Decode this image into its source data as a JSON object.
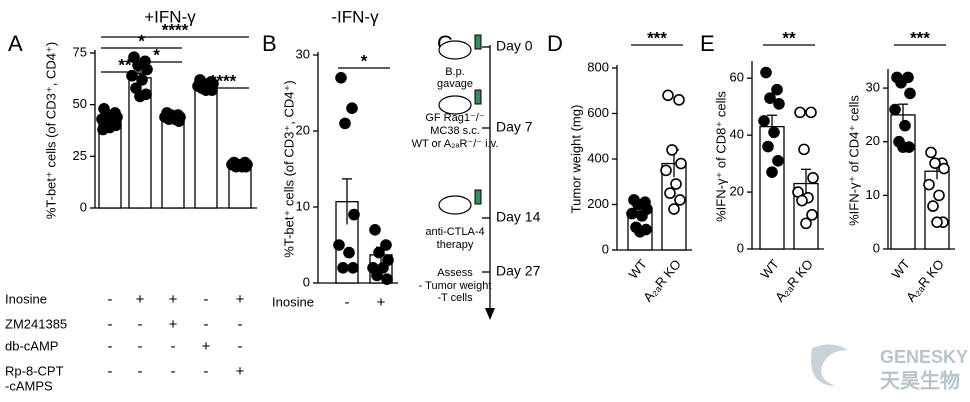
{
  "chart_data": [
    {
      "type": "bar",
      "panel_label": "A",
      "title": "+IFN-γ",
      "ylabel": "%T-bet⁺ cells (of CD3⁺, CD4⁺)",
      "values": [
        43,
        63,
        44,
        59,
        21
      ],
      "errors": [
        1.5,
        2,
        1,
        1,
        0.5
      ],
      "points": [
        [
          48,
          46,
          45,
          44,
          43,
          42,
          41,
          40,
          39,
          38
        ],
        [
          73,
          71,
          69,
          67,
          64,
          62,
          58,
          55,
          54
        ],
        [
          46,
          45,
          45,
          44,
          44,
          43,
          43,
          42
        ],
        [
          62,
          61,
          60,
          60,
          59,
          58,
          58,
          57,
          57
        ],
        [
          22,
          22,
          21,
          21,
          21,
          20,
          20,
          20
        ]
      ],
      "open": [
        false,
        false,
        false,
        false,
        false
      ],
      "ylim": [
        0,
        75
      ],
      "yticks": [
        0,
        25,
        50,
        75
      ],
      "conditions": [
        {
          "name": [
            "Inosine"
          ],
          "values": [
            "-",
            "+",
            "+",
            "-",
            "+"
          ]
        },
        {
          "name": [
            "ZM241385"
          ],
          "values": [
            "-",
            "-",
            "+",
            "-",
            "-"
          ]
        },
        {
          "name": [
            "db-cAMP"
          ],
          "values": [
            "-",
            "-",
            "-",
            "+",
            "-"
          ]
        },
        {
          "name": [
            "Rp-8-CPT",
            "-cAMPS"
          ],
          "values": [
            "-",
            "-",
            "-",
            "-",
            "+"
          ]
        }
      ],
      "significance": [
        "****",
        "*",
        "*",
        "**",
        "****"
      ],
      "color": "#ffffff"
    },
    {
      "type": "bar",
      "panel_label": "B",
      "title": "-IFN-γ",
      "ylabel": "%T-bet⁺ cells (of CD3⁺, CD4⁺)",
      "values": [
        10.7,
        3.7
      ],
      "errors": [
        3,
        1
      ],
      "points": [
        [
          27,
          23,
          21,
          9,
          5,
          4,
          2,
          2
        ],
        [
          7,
          5,
          4,
          3,
          2,
          2,
          1,
          0.5
        ]
      ],
      "open": [
        false,
        false
      ],
      "ylim": [
        0,
        30
      ],
      "yticks": [
        0,
        10,
        20,
        30
      ],
      "conditions": [
        {
          "name": [
            "Inosine"
          ],
          "values": [
            "-",
            "+"
          ]
        }
      ],
      "significance": [
        "*"
      ],
      "color": "#ffffff"
    },
    {
      "type": "bar",
      "panel_label": "D",
      "ylabel": "Tumor weight (mg)",
      "categories": [
        "WT",
        "A₂ₐR KO"
      ],
      "values": [
        170,
        380
      ],
      "errors": [
        20,
        60
      ],
      "points": [
        [
          220,
          210,
          200,
          180,
          160,
          150,
          100,
          90,
          80
        ],
        [
          680,
          660,
          440,
          380,
          350,
          290,
          250,
          220,
          180
        ]
      ],
      "open": [
        false,
        true
      ],
      "ylim": [
        0,
        800
      ],
      "yticks": [
        0,
        200,
        400,
        600,
        800
      ],
      "significance": [
        "***"
      ],
      "color": "#ffffff"
    },
    {
      "type": "bar",
      "panel_label": "E",
      "ylabel": "%IFN-γ⁺ of  CD8⁺ cells",
      "categories": [
        "WT",
        "A₂ₐR KO"
      ],
      "values": [
        43,
        23
      ],
      "errors": [
        4,
        5
      ],
      "points": [
        [
          62,
          56,
          53,
          51,
          45,
          41,
          36,
          31,
          27
        ],
        [
          48,
          48,
          35,
          25,
          20,
          18,
          17,
          12,
          9
        ]
      ],
      "open": [
        false,
        true
      ],
      "ylim": [
        0,
        65
      ],
      "yticks": [
        0,
        20,
        40,
        60
      ],
      "significance": [
        "**"
      ],
      "color": "#ffffff"
    },
    {
      "type": "bar",
      "ylabel": "%IFN-γ⁺ of  CD4⁺ cells",
      "categories": [
        "WT",
        "A₂ₐR KO"
      ],
      "values": [
        25,
        14.5
      ],
      "errors": [
        2,
        1.5
      ],
      "points": [
        [
          32,
          32,
          31,
          29,
          26,
          23,
          20,
          19,
          19
        ],
        [
          18,
          16,
          16,
          15,
          12,
          10,
          8,
          5,
          5
        ]
      ],
      "open": [
        false,
        true
      ],
      "ylim": [
        0,
        33
      ],
      "yticks": [
        0,
        10,
        20,
        30
      ],
      "significance": [
        "***"
      ],
      "color": "#ffffff"
    }
  ],
  "timeline": {
    "panel_label": "C",
    "events": [
      {
        "day": "Day 0",
        "notes": [
          "B.p.",
          "gavage"
        ]
      },
      {
        "day": "Day 7",
        "notes": [
          "GF Rag1⁻/⁻",
          "MC38 s.c.",
          "WT or A₂ₐR⁻/⁻ i.v."
        ]
      },
      {
        "day": "Day 14",
        "notes": [
          "anti-CTLA-4",
          "therapy"
        ]
      },
      {
        "day": "Day 27",
        "notes": [
          "Assess",
          "- Tumor weight",
          "-T cells"
        ]
      }
    ]
  },
  "watermark": {
    "latin": "GENESKY",
    "chinese": "天昊生物"
  }
}
